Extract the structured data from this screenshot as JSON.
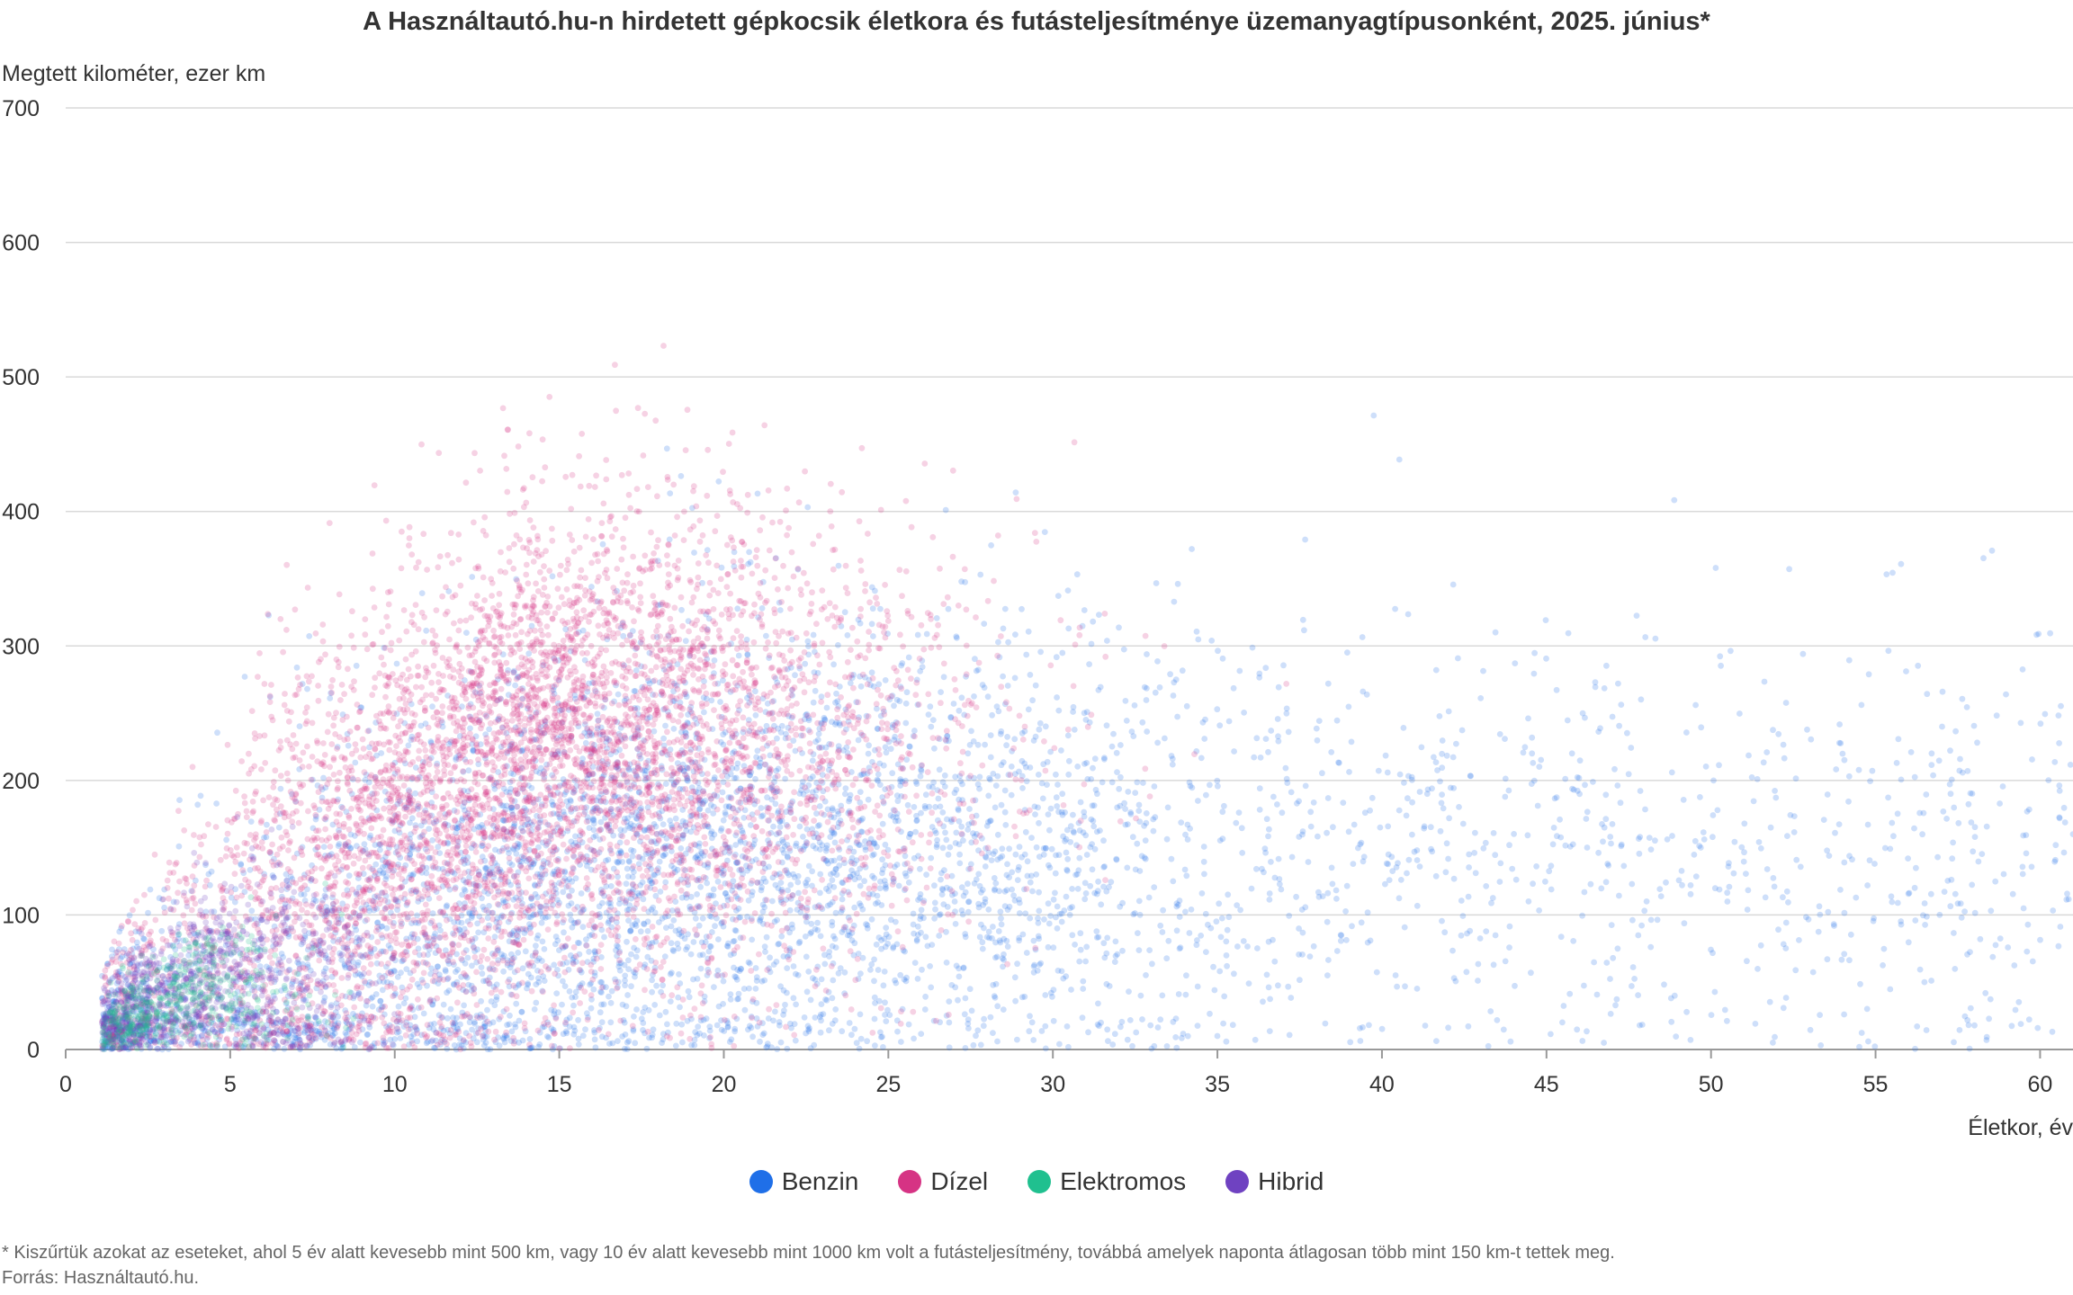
{
  "chart_data": {
    "type": "scatter",
    "title": "A Használtautó.hu-n hirdetett gépkocsik életkora és futásteljesítménye üzemanyagtípusonként, 2025. június*",
    "ylabel": "Megtett kilométer, ezer km",
    "xlabel": "Életkor, év",
    "xlim": [
      0,
      61
    ],
    "ylim": [
      0,
      700
    ],
    "x_ticks": [
      "0",
      "5",
      "10",
      "15",
      "20",
      "25",
      "30",
      "35",
      "40",
      "45",
      "50",
      "55",
      "60"
    ],
    "y_ticks": [
      "0",
      "100",
      "200",
      "300",
      "400",
      "500",
      "600",
      "700"
    ],
    "grid": "horizontal",
    "legend_position": "bottom",
    "series": [
      {
        "name": "Benzin",
        "color": "#1f6fe8",
        "count": 5200,
        "age_center": 17,
        "age_spread": 9,
        "km_center": 150,
        "km_spread": 85,
        "age_max": 61
      },
      {
        "name": "Dízel",
        "color": "#d63384",
        "count": 5600,
        "age_center": 14,
        "age_spread": 6,
        "km_center": 230,
        "km_spread": 90,
        "age_max": 45
      },
      {
        "name": "Elektromos",
        "color": "#20c08f",
        "count": 500,
        "age_center": 3.5,
        "age_spread": 1.8,
        "km_center": 45,
        "km_spread": 30,
        "age_max": 9
      },
      {
        "name": "Hibrid",
        "color": "#6f42c1",
        "count": 900,
        "age_center": 4,
        "age_spread": 2.5,
        "km_center": 60,
        "km_spread": 40,
        "age_max": 20
      }
    ]
  },
  "footnote": "* Kiszűrtük azokat az eseteket, ahol 5 év alatt kevesebb mint 500 km, vagy 10 év alatt kevesebb mint 1000 km volt a futásteljesítmény, továbbá amelyek naponta átlagosan több mint 150 km-t tettek meg.",
  "source": "Forrás: Használtautó.hu."
}
